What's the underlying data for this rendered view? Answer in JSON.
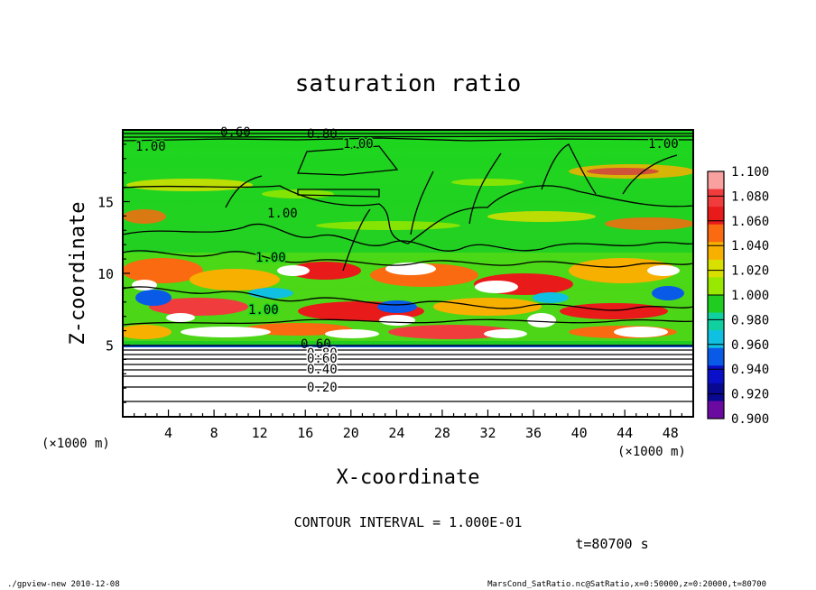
{
  "chart_data": {
    "type": "heatmap",
    "title": "saturation ratio",
    "xlabel": "X-coordinate",
    "ylabel": "Z-coordinate",
    "x_unit": "(×1000 m)",
    "z_unit": "(×1000 m)",
    "xlim": [
      0,
      50
    ],
    "ylim": [
      0,
      20
    ],
    "x_ticks": [
      4,
      8,
      12,
      16,
      20,
      24,
      28,
      32,
      36,
      40,
      44,
      48
    ],
    "x_tick_labels": [
      "4",
      "8",
      "12",
      "16",
      "20",
      "24",
      "28",
      "32",
      "36",
      "40",
      "44",
      "48"
    ],
    "y_ticks": [
      5,
      10,
      15
    ],
    "y_tick_labels": [
      "5",
      "10",
      "15"
    ],
    "colorbar": {
      "labels": [
        "1.100",
        "1.080",
        "1.060",
        "1.040",
        "1.020",
        "1.000",
        "0.980",
        "0.960",
        "0.940",
        "0.920",
        "0.900"
      ],
      "colors": [
        "#f9a0a0",
        "#f03c3c",
        "#e81a1a",
        "#fa6a10",
        "#f8b000",
        "#d8e000",
        "#98e800",
        "#20cc20",
        "#10d0a0",
        "#10c0e0",
        "#0a5ae8",
        "#0a10c8",
        "#080890",
        "#6a0aa0"
      ]
    },
    "contour_labels": [
      "1.00",
      "1.00",
      "1.00",
      "1.00",
      "1.00",
      "1.00",
      "0.60",
      "0.80",
      "0.60",
      "0.80",
      "0.60",
      "0.40",
      "0.20"
    ],
    "contour_levels_lower": [
      0.2,
      0.4,
      0.6,
      0.8
    ],
    "contour_interval_text": "CONTOUR INTERVAL = 1.000E-01",
    "time_text": "t=80700 s"
  },
  "footer": {
    "left": "./gpview-new   2010-12-08",
    "right": "MarsCond_SatRatio.nc@SatRatio,x=0:50000,z=0:20000,t=80700"
  }
}
